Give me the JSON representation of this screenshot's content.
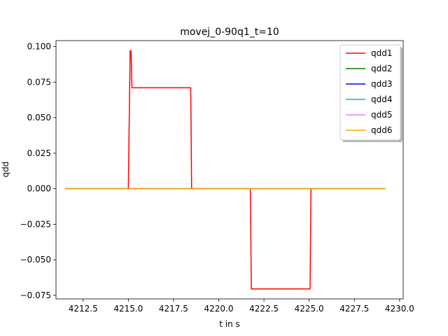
{
  "chart_data": {
    "type": "line",
    "title": "movej_0-90q1_t=10",
    "xlabel": "t in s",
    "ylabel": "qdd",
    "xlim": [
      4211.0,
      4230.2
    ],
    "ylim": [
      -0.0775,
      0.1042
    ],
    "xticks": [
      4212.5,
      4215.0,
      4217.5,
      4220.0,
      4222.5,
      4225.0,
      4227.5,
      4230.0
    ],
    "xtick_labels": [
      "4212.5",
      "4215.0",
      "4217.5",
      "4220.0",
      "4222.5",
      "4225.0",
      "4227.5",
      "4230.0"
    ],
    "yticks": [
      -0.075,
      -0.05,
      -0.025,
      0.0,
      0.025,
      0.05,
      0.075,
      0.1
    ],
    "ytick_labels": [
      "−0.075",
      "−0.050",
      "−0.025",
      "0.000",
      "0.025",
      "0.050",
      "0.075",
      "0.100"
    ],
    "grid": false,
    "legend_position": "top-right",
    "series": [
      {
        "name": "qdd1",
        "color": "#ff0000",
        "x": [
          4211.5,
          4215.0,
          4215.1,
          4215.15,
          4215.2,
          4215.25,
          4218.45,
          4218.5,
          4221.75,
          4221.8,
          4225.05,
          4225.1,
          4229.2
        ],
        "y": [
          0.0,
          0.0,
          0.097,
          0.097,
          0.071,
          0.071,
          0.071,
          0.0,
          0.0,
          -0.0705,
          -0.0705,
          0.0,
          0.0
        ]
      },
      {
        "name": "qdd2",
        "color": "#008000",
        "x": [
          4211.5,
          4229.2
        ],
        "y": [
          0.0,
          0.0
        ]
      },
      {
        "name": "qdd3",
        "color": "#0000ff",
        "x": [
          4211.5,
          4229.2
        ],
        "y": [
          0.0,
          0.0
        ]
      },
      {
        "name": "qdd4",
        "color": "#00bfbf",
        "x": [
          4211.5,
          4229.2
        ],
        "y": [
          0.0,
          0.0
        ]
      },
      {
        "name": "qdd5",
        "color": "#ee82ee",
        "x": [
          4211.5,
          4229.2
        ],
        "y": [
          0.0,
          0.0
        ]
      },
      {
        "name": "qdd6",
        "color": "#ffa500",
        "x": [
          4211.5,
          4229.2
        ],
        "y": [
          0.0,
          0.0
        ]
      }
    ]
  }
}
